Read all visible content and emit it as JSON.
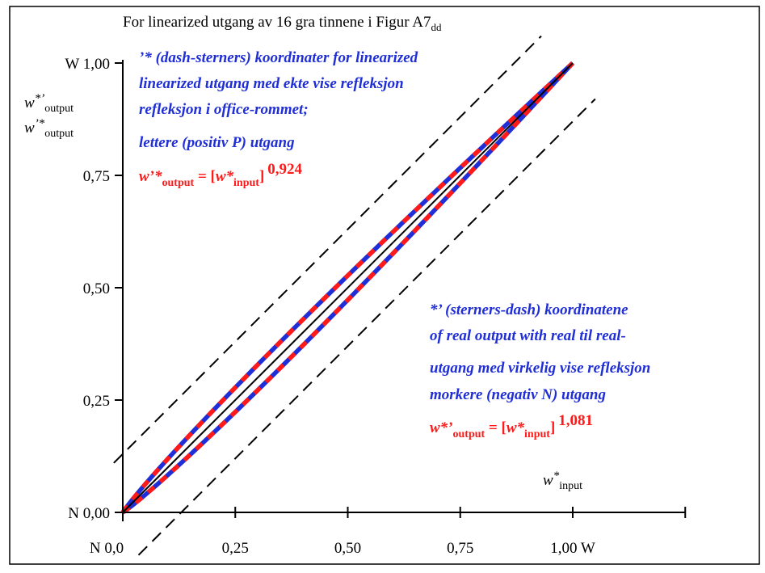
{
  "title": {
    "main": "For linearized utgang av 16 gra tinnene i Figur A7",
    "sub": "dd"
  },
  "y_axis": {
    "label_line1": {
      "base": "w",
      "sup": "*’",
      "sub": "output"
    },
    "label_line2": {
      "base": "w",
      "sup": "’*",
      "sub": "output"
    },
    "ticks": [
      {
        "value": 0.0,
        "label": "N 0,00"
      },
      {
        "value": 0.25,
        "label": "0,25"
      },
      {
        "value": 0.5,
        "label": "0,50"
      },
      {
        "value": 0.75,
        "label": "0,75"
      },
      {
        "value": 1.0,
        "label": "W 1,00"
      }
    ]
  },
  "x_axis": {
    "label": {
      "base": "w",
      "sup": "*",
      "sub": "input"
    },
    "ticks": [
      {
        "value": 0.0,
        "label": "N  0,0"
      },
      {
        "value": 0.25,
        "label": "0,25"
      },
      {
        "value": 0.5,
        "label": "0,50"
      },
      {
        "value": 0.75,
        "label": "0,75"
      },
      {
        "value": 1.0,
        "label": "1,00  W"
      }
    ]
  },
  "legend_upper": {
    "lines": [
      "’* (dash-sterners) koordinater for linearized",
      "linearized utgang med ekte vise refleksjon",
      "refleksjon i office-rommet;",
      "lettere (positiv P) utgang"
    ],
    "formula": {
      "lhs_base": "w’*",
      "lhs_sub": "output",
      "eq": " = [",
      "in_base": "w*",
      "in_sub": "input",
      "close": "]",
      "exponent": "0,924"
    }
  },
  "legend_lower": {
    "lines": [
      "*’ (sterners-dash) koordinatene",
      "of real output with real til real-",
      "utgang med virkelig vise refleksjon",
      "morkere (negativ N) utgang"
    ],
    "formula": {
      "lhs_base": "w*’",
      "lhs_sub": "output",
      "eq": " = [",
      "in_base": "w*",
      "in_sub": "input",
      "close": "]",
      "exponent": "1,081"
    }
  },
  "colors": {
    "blue": "#1f2ed6",
    "red": "#ff1a1a",
    "black": "#000000"
  },
  "chart_data": {
    "type": "line",
    "xlim": [
      0,
      1
    ],
    "ylim": [
      0,
      1
    ],
    "grid": false,
    "series": [
      {
        "name": "w’*output = [w*input]^0,924",
        "function": "power",
        "exponent": 0.924,
        "style": "dashed blue/red"
      },
      {
        "name": "w*’output = [w*input]^1,081",
        "function": "power",
        "exponent": 1.081,
        "style": "dashed blue/red"
      },
      {
        "function": "identity",
        "style": "solid black"
      },
      {
        "function": "offset",
        "offset": 0.13,
        "style": "dashed black"
      },
      {
        "function": "offset",
        "offset": -0.13,
        "style": "dashed black"
      }
    ]
  }
}
